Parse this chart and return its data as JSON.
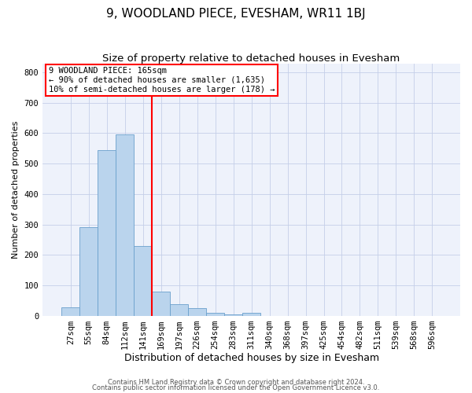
{
  "title": "9, WOODLAND PIECE, EVESHAM, WR11 1BJ",
  "subtitle": "Size of property relative to detached houses in Evesham",
  "xlabel": "Distribution of detached houses by size in Evesham",
  "ylabel": "Number of detached properties",
  "bin_labels": [
    "27sqm",
    "55sqm",
    "84sqm",
    "112sqm",
    "141sqm",
    "169sqm",
    "197sqm",
    "226sqm",
    "254sqm",
    "283sqm",
    "311sqm",
    "340sqm",
    "368sqm",
    "397sqm",
    "425sqm",
    "454sqm",
    "482sqm",
    "511sqm",
    "539sqm",
    "568sqm",
    "596sqm"
  ],
  "bar_heights": [
    28,
    290,
    545,
    595,
    228,
    78,
    38,
    25,
    10,
    5,
    8,
    0,
    0,
    0,
    0,
    0,
    0,
    0,
    0,
    0,
    0
  ],
  "bar_color": "#bad4ed",
  "bar_edge_color": "#6aa0cc",
  "vline_x_index": 5,
  "vline_color": "red",
  "ylim": [
    0,
    830
  ],
  "yticks": [
    0,
    100,
    200,
    300,
    400,
    500,
    600,
    700,
    800
  ],
  "annotation_line1": "9 WOODLAND PIECE: 165sqm",
  "annotation_line2": "← 90% of detached houses are smaller (1,635)",
  "annotation_line3": "10% of semi-detached houses are larger (178) →",
  "annotation_box_color": "red",
  "background_color": "#eef2fb",
  "grid_color": "#c5cfe8",
  "footer_line1": "Contains HM Land Registry data © Crown copyright and database right 2024.",
  "footer_line2": "Contains public sector information licensed under the Open Government Licence v3.0.",
  "title_fontsize": 11,
  "subtitle_fontsize": 9.5,
  "xlabel_fontsize": 9,
  "ylabel_fontsize": 8,
  "tick_fontsize": 7.5,
  "annotation_fontsize": 7.5,
  "footer_fontsize": 6
}
